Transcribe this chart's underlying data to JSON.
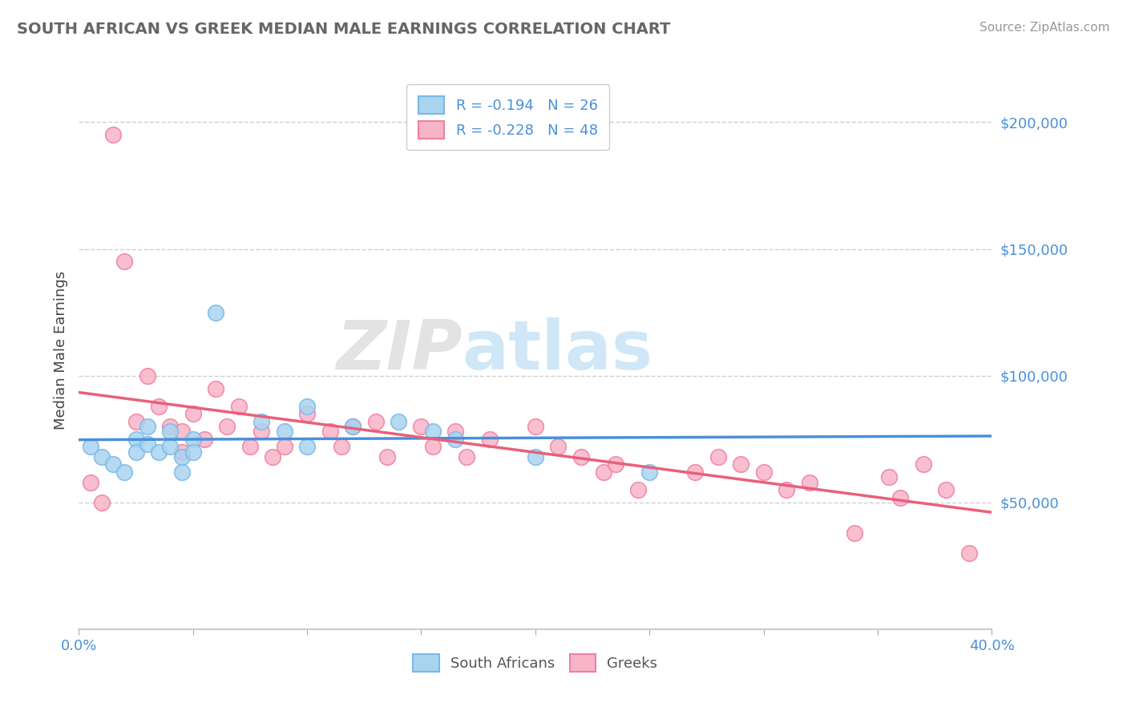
{
  "title": "SOUTH AFRICAN VS GREEK MEDIAN MALE EARNINGS CORRELATION CHART",
  "source": "Source: ZipAtlas.com",
  "ylabel": "Median Male Earnings",
  "xlim": [
    0.0,
    0.4
  ],
  "ylim": [
    0,
    220000
  ],
  "yticks": [
    0,
    50000,
    100000,
    150000,
    200000
  ],
  "ytick_labels": [
    "",
    "$50,000",
    "$100,000",
    "$150,000",
    "$200,000"
  ],
  "xticks": [
    0.0,
    0.05,
    0.1,
    0.15,
    0.2,
    0.25,
    0.3,
    0.35,
    0.4
  ],
  "xtick_labels": [
    "0.0%",
    "",
    "",
    "",
    "",
    "",
    "",
    "",
    "40.0%"
  ],
  "sa_color": "#a8d4f0",
  "greek_color": "#f8b4c8",
  "sa_edge_color": "#7ab8e8",
  "greek_edge_color": "#f080a0",
  "sa_line_color": "#4a90d9",
  "greek_line_color": "#e8607a",
  "sa_R": -0.194,
  "sa_N": 26,
  "greek_R": -0.228,
  "greek_N": 48,
  "background_color": "#ffffff",
  "grid_color": "#d0d0d0",
  "axis_color": "#4a90d9",
  "title_color": "#666666",
  "ylabel_color": "#444444",
  "sa_points_x": [
    0.005,
    0.01,
    0.015,
    0.02,
    0.025,
    0.025,
    0.03,
    0.03,
    0.035,
    0.04,
    0.04,
    0.045,
    0.045,
    0.05,
    0.05,
    0.06,
    0.08,
    0.09,
    0.1,
    0.1,
    0.12,
    0.14,
    0.155,
    0.165,
    0.2,
    0.25
  ],
  "sa_points_y": [
    72000,
    68000,
    65000,
    62000,
    75000,
    70000,
    80000,
    73000,
    70000,
    78000,
    72000,
    68000,
    62000,
    75000,
    70000,
    125000,
    82000,
    78000,
    88000,
    72000,
    80000,
    82000,
    78000,
    75000,
    68000,
    62000
  ],
  "greek_points_x": [
    0.005,
    0.01,
    0.015,
    0.02,
    0.025,
    0.03,
    0.035,
    0.04,
    0.045,
    0.045,
    0.05,
    0.055,
    0.06,
    0.065,
    0.07,
    0.075,
    0.08,
    0.085,
    0.09,
    0.1,
    0.11,
    0.115,
    0.12,
    0.13,
    0.135,
    0.15,
    0.155,
    0.165,
    0.17,
    0.18,
    0.2,
    0.21,
    0.22,
    0.23,
    0.235,
    0.245,
    0.27,
    0.28,
    0.29,
    0.3,
    0.31,
    0.32,
    0.34,
    0.355,
    0.36,
    0.37,
    0.38,
    0.39
  ],
  "greek_points_y": [
    58000,
    50000,
    195000,
    145000,
    82000,
    100000,
    88000,
    80000,
    78000,
    70000,
    85000,
    75000,
    95000,
    80000,
    88000,
    72000,
    78000,
    68000,
    72000,
    85000,
    78000,
    72000,
    80000,
    82000,
    68000,
    80000,
    72000,
    78000,
    68000,
    75000,
    80000,
    72000,
    68000,
    62000,
    65000,
    55000,
    62000,
    68000,
    65000,
    62000,
    55000,
    58000,
    38000,
    60000,
    52000,
    65000,
    55000,
    30000
  ]
}
